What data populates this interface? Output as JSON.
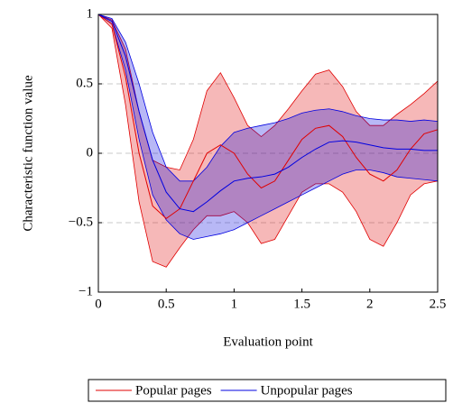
{
  "chart_data": {
    "type": "line-band",
    "x_label": "Evaluation point",
    "y_label": "Characteristic function value",
    "x": [
      0,
      0.1,
      0.2,
      0.3,
      0.4,
      0.5,
      0.6,
      0.7,
      0.8,
      0.9,
      1.0,
      1.1,
      1.2,
      1.3,
      1.4,
      1.5,
      1.6,
      1.7,
      1.8,
      1.9,
      2.0,
      2.1,
      2.2,
      2.3,
      2.4,
      2.5
    ],
    "series": [
      {
        "name": "Popular pages",
        "color": "#e00000",
        "values": [
          1,
          0.93,
          0.55,
          0.0,
          -0.38,
          -0.47,
          -0.4,
          -0.2,
          0.0,
          0.06,
          0.0,
          -0.15,
          -0.25,
          -0.2,
          -0.05,
          0.1,
          0.18,
          0.2,
          0.12,
          -0.03,
          -0.15,
          -0.2,
          -0.12,
          0.03,
          0.14,
          0.17
        ],
        "upper": [
          1,
          0.96,
          0.75,
          0.3,
          -0.05,
          -0.1,
          -0.12,
          0.1,
          0.45,
          0.58,
          0.4,
          0.2,
          0.12,
          0.2,
          0.32,
          0.45,
          0.57,
          0.6,
          0.48,
          0.3,
          0.2,
          0.2,
          0.28,
          0.35,
          0.43,
          0.52
        ],
        "lower": [
          1,
          0.9,
          0.35,
          -0.35,
          -0.78,
          -0.82,
          -0.68,
          -0.55,
          -0.45,
          -0.45,
          -0.42,
          -0.5,
          -0.65,
          -0.62,
          -0.45,
          -0.28,
          -0.22,
          -0.22,
          -0.28,
          -0.42,
          -0.62,
          -0.67,
          -0.5,
          -0.3,
          -0.22,
          -0.2
        ]
      },
      {
        "name": "Unpopular pages",
        "color": "#0000e0",
        "values": [
          1,
          0.95,
          0.7,
          0.3,
          -0.05,
          -0.28,
          -0.4,
          -0.42,
          -0.35,
          -0.27,
          -0.2,
          -0.18,
          -0.17,
          -0.15,
          -0.1,
          -0.03,
          0.03,
          0.08,
          0.09,
          0.08,
          0.06,
          0.04,
          0.03,
          0.03,
          0.02,
          0.02
        ],
        "upper": [
          1,
          0.97,
          0.8,
          0.5,
          0.15,
          -0.1,
          -0.2,
          -0.2,
          -0.1,
          0.05,
          0.15,
          0.18,
          0.2,
          0.22,
          0.25,
          0.29,
          0.31,
          0.32,
          0.3,
          0.27,
          0.25,
          0.24,
          0.24,
          0.23,
          0.24,
          0.23
        ],
        "lower": [
          1,
          0.93,
          0.6,
          0.1,
          -0.3,
          -0.48,
          -0.58,
          -0.62,
          -0.6,
          -0.58,
          -0.55,
          -0.5,
          -0.45,
          -0.4,
          -0.35,
          -0.3,
          -0.25,
          -0.2,
          -0.15,
          -0.12,
          -0.12,
          -0.14,
          -0.17,
          -0.18,
          -0.19,
          -0.2
        ]
      }
    ],
    "xlim": [
      0,
      2.5
    ],
    "xticks": [
      0,
      0.5,
      1,
      1.5,
      2,
      2.5
    ],
    "ylim": [
      -1,
      1
    ],
    "yticks": [
      {
        "value": -1,
        "label": "−1"
      },
      {
        "value": -0.5,
        "label": "−0.5"
      },
      0,
      0.5,
      1
    ],
    "grid": true,
    "legend": "bottom"
  }
}
